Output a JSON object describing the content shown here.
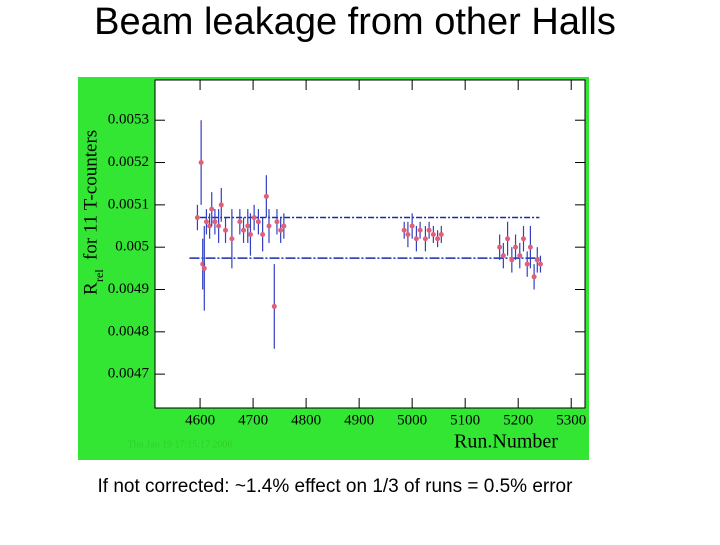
{
  "title": "Beam leakage from other Halls",
  "caption": "If not corrected: ~1.4% effect on 1/3 of runs = 0.5% error",
  "chart_data": {
    "type": "scatter",
    "ylabel": {
      "main": "R",
      "sub": "rel",
      "rest": "for 11 T-counters"
    },
    "xlabel": "Run.Number",
    "timestamp": "Thu Jan 19 17:15:17 2006",
    "xlim": [
      4515,
      5326
    ],
    "ylim": [
      0.00462,
      0.005395
    ],
    "xticks": [
      4600,
      4700,
      4800,
      4900,
      5000,
      5100,
      5200,
      5300
    ],
    "yticks": [
      0.0047,
      0.0048,
      0.0049,
      0.005,
      0.0051,
      0.0052,
      0.0053
    ],
    "marker_color": "#e0607a",
    "errorbar_color": "#3040c0",
    "x": [
      4595,
      4602,
      4605,
      4608,
      4612,
      4618,
      4622,
      4628,
      4635,
      4640,
      4648,
      4660,
      4675,
      4682,
      4690,
      4695,
      4702,
      4710,
      4718,
      4725,
      4730,
      4740,
      4745,
      4752,
      4758,
      4985,
      4992,
      5000,
      5008,
      5015,
      5025,
      5032,
      5040,
      5048,
      5055,
      5165,
      5172,
      5180,
      5188,
      5195,
      5203,
      5210,
      5217,
      5223,
      5230,
      5236,
      5242
    ],
    "values": [
      0.00507,
      0.0052,
      0.00496,
      0.00495,
      0.00506,
      0.00505,
      0.00509,
      0.00506,
      0.00505,
      0.0051,
      0.00504,
      0.00502,
      0.00506,
      0.00504,
      0.00505,
      0.00503,
      0.00507,
      0.00506,
      0.00503,
      0.00512,
      0.00505,
      0.00486,
      0.00506,
      0.00504,
      0.00505,
      0.00504,
      0.00503,
      0.00505,
      0.00502,
      0.00504,
      0.00502,
      0.00504,
      0.00503,
      0.00502,
      0.00503,
      0.005,
      0.00498,
      0.00502,
      0.00497,
      0.005,
      0.00498,
      0.00502,
      0.00496,
      0.005,
      0.00493,
      0.00497,
      0.00496
    ],
    "errors": [
      3e-05,
      0.0001,
      6e-05,
      0.0001,
      3e-05,
      3e-05,
      4e-05,
      3e-05,
      4e-05,
      4e-05,
      3e-05,
      7e-05,
      3e-05,
      3e-05,
      4e-05,
      5e-05,
      3e-05,
      3e-05,
      4e-05,
      5e-05,
      4e-05,
      0.0001,
      3e-05,
      3e-05,
      3e-05,
      2e-05,
      3e-05,
      3e-05,
      3e-05,
      2e-05,
      3e-05,
      2e-05,
      2e-05,
      2e-05,
      2e-05,
      3e-05,
      3e-05,
      4e-05,
      3e-05,
      3e-05,
      3e-05,
      3e-05,
      3e-05,
      5e-05,
      3e-05,
      3e-05,
      2e-05
    ],
    "reference_lines": [
      {
        "y": 0.00507,
        "x": [
          4600,
          5240
        ]
      },
      {
        "y": 0.004974,
        "x": [
          4580,
          5240
        ]
      }
    ]
  }
}
